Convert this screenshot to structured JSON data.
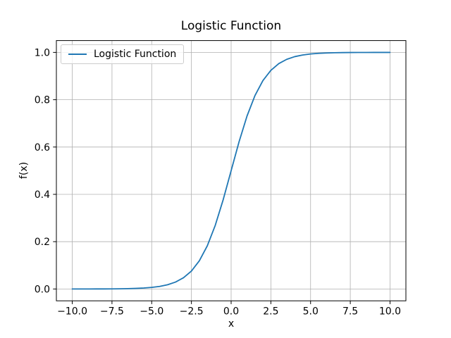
{
  "chart_data": {
    "type": "line",
    "title": "Logistic Function",
    "xlabel": "x",
    "ylabel": "f(x)",
    "xlim": [
      -11,
      11
    ],
    "ylim": [
      -0.05,
      1.05
    ],
    "xticks": [
      -10,
      -7.5,
      -5,
      -2.5,
      0,
      2.5,
      5,
      7.5,
      10
    ],
    "xtick_labels": [
      "−10.0",
      "−7.5",
      "−5.0",
      "−2.5",
      "0.0",
      "2.5",
      "5.0",
      "7.5",
      "10.0"
    ],
    "yticks": [
      0,
      0.2,
      0.4,
      0.6,
      0.8,
      1.0
    ],
    "ytick_labels": [
      "0.0",
      "0.2",
      "0.4",
      "0.6",
      "0.8",
      "1.0"
    ],
    "grid": true,
    "grid_color": "#b0b0b0",
    "spine_color": "#000000",
    "background_color": "#ffffff",
    "legend_position": "upper left",
    "series": [
      {
        "name": "Logistic Function",
        "color": "#1f77b4",
        "x": [
          -10,
          -9.5,
          -9,
          -8.5,
          -8,
          -7.5,
          -7,
          -6.5,
          -6,
          -5.5,
          -5,
          -4.5,
          -4,
          -3.5,
          -3,
          -2.5,
          -2,
          -1.5,
          -1,
          -0.5,
          0,
          0.5,
          1,
          1.5,
          2,
          2.5,
          3,
          3.5,
          4,
          4.5,
          5,
          5.5,
          6,
          6.5,
          7,
          7.5,
          8,
          8.5,
          9,
          9.5,
          10
        ],
        "y": [
          5e-05,
          7e-05,
          0.00012,
          0.0002,
          0.00034,
          0.00055,
          0.00091,
          0.0015,
          0.00247,
          0.00407,
          0.00669,
          0.01099,
          0.01799,
          0.02931,
          0.04743,
          0.07586,
          0.1192,
          0.18243,
          0.26894,
          0.37754,
          0.5,
          0.62246,
          0.73106,
          0.81757,
          0.8808,
          0.92414,
          0.95257,
          0.97069,
          0.98201,
          0.98901,
          0.99331,
          0.99593,
          0.99753,
          0.9985,
          0.99909,
          0.99945,
          0.99966,
          0.9998,
          0.99988,
          0.99993,
          0.99995
        ]
      }
    ]
  }
}
